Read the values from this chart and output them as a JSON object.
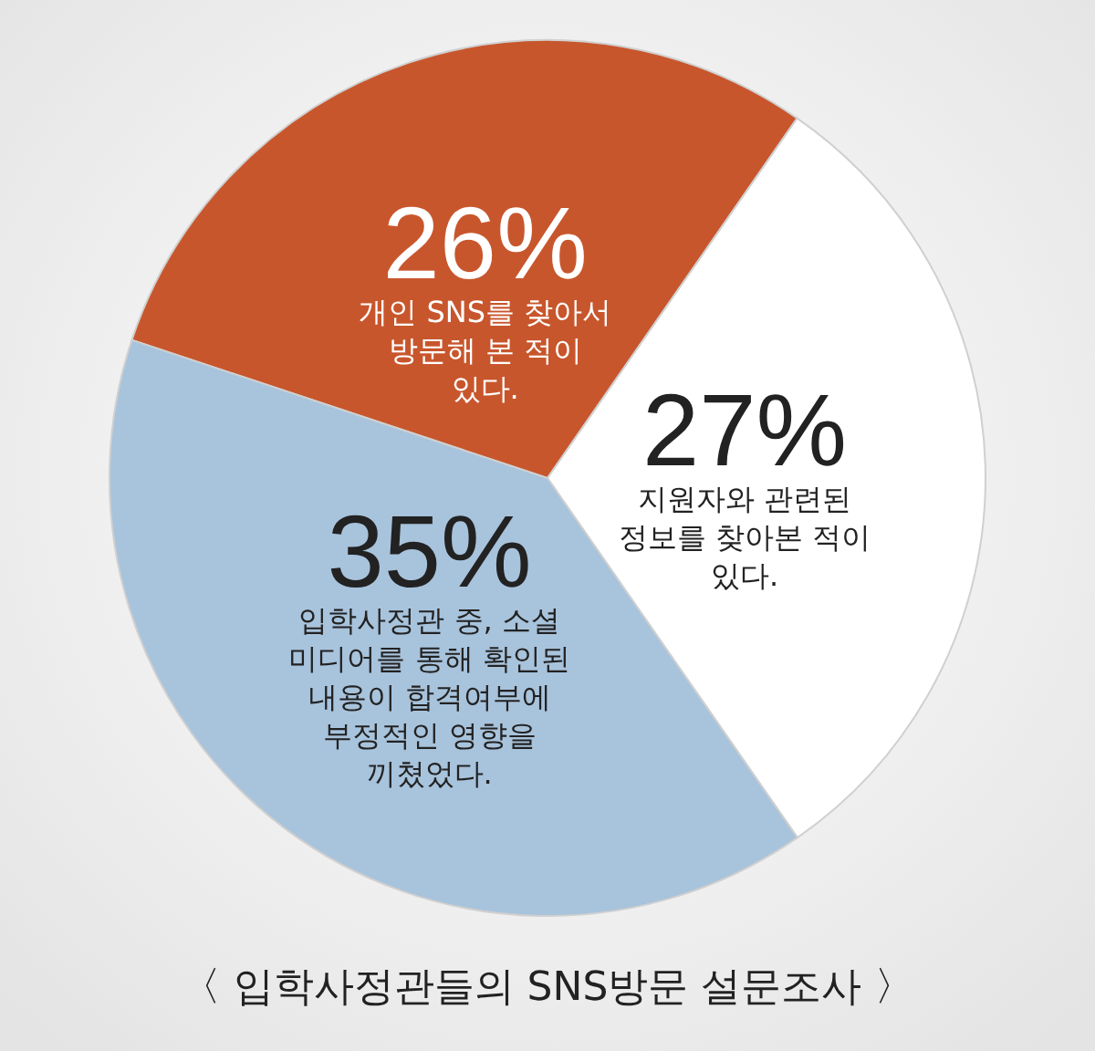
{
  "chart_data": {
    "type": "pie",
    "title": "〈 입학사정관들의 SNS방문 설문조사 〉",
    "categories": [
      "개인 SNS를 찾아서 방문해 본 적이 있다.",
      "지원자와 관련된 정보를 찾아본 적이 있다.",
      "입학사정관 중, 소셜 미디어를 통해 확인된 내용이 합격여부에 부정적인 영향을 끼쳤었다."
    ],
    "values": [
      26,
      27,
      35
    ],
    "value_labels": [
      "26%",
      "27%",
      "35%"
    ],
    "colors": [
      "#c8562c",
      "#ffffff",
      "#a8c3dc"
    ]
  }
}
